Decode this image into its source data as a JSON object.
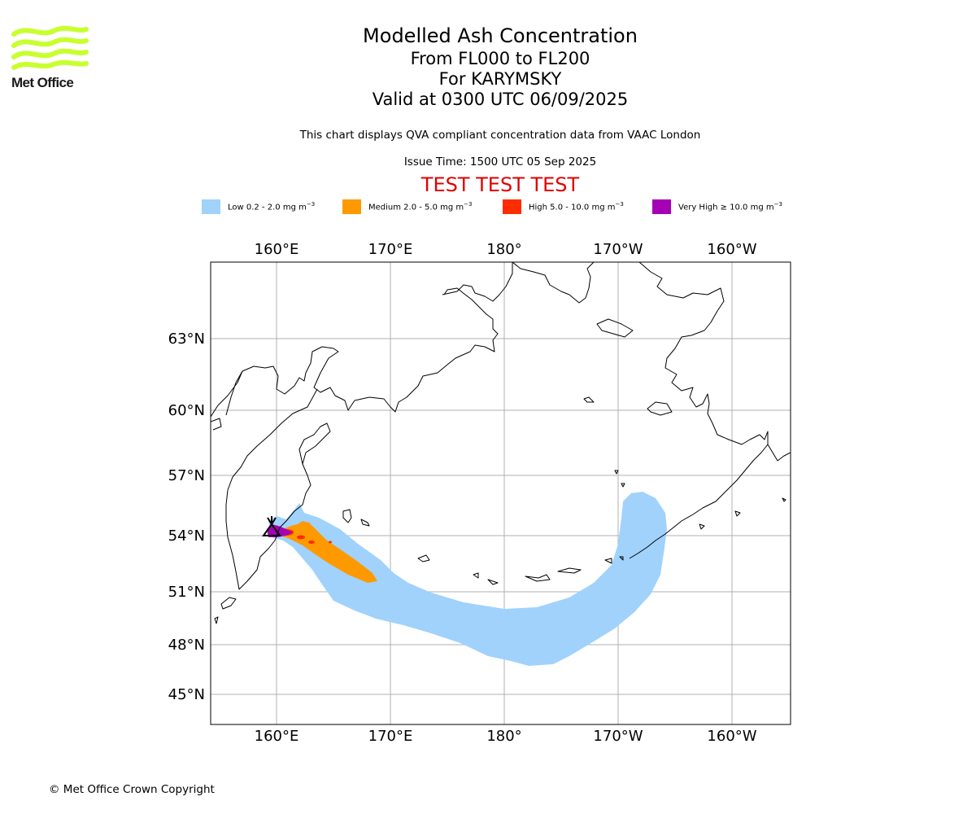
{
  "header": {
    "title": "Modelled Ash Concentration",
    "flight_levels": "From FL000 to FL200",
    "volcano_line": "For KARYMSKY",
    "valid_time": "Valid at 0300 UTC 06/09/2025",
    "subtitle": "This chart displays QVA compliant concentration data from VAAC London",
    "issue_time": "Issue Time: 1500 UTC 05 Sep 2025",
    "test_banner": "TEST TEST TEST"
  },
  "logo": {
    "text": "Met Office",
    "color": "#c8ff2e"
  },
  "legend": [
    {
      "label": "Low 0.2 - 2.0 mg m",
      "sup": "−3",
      "color": "#a0d2fc"
    },
    {
      "label": "Medium 2.0 - 5.0 mg m",
      "sup": "−3",
      "color": "#fe9a00"
    },
    {
      "label": "High 5.0 - 10.0 mg m",
      "sup": "−3",
      "color": "#fd2d00"
    },
    {
      "label": "Very High ≥ 10.0 mg m",
      "sup": "−3",
      "color": "#a600b6"
    }
  ],
  "map": {
    "lon_ticks": [
      "160°E",
      "170°E",
      "180°",
      "170°W",
      "160°W"
    ],
    "lat_ticks": [
      "63°N",
      "60°N",
      "57°N",
      "54°N",
      "51°N",
      "48°N",
      "45°N"
    ],
    "volcano_symbol": "volcano-triangle"
  },
  "footer": {
    "copyright": "© Met Office Crown Copyright"
  }
}
